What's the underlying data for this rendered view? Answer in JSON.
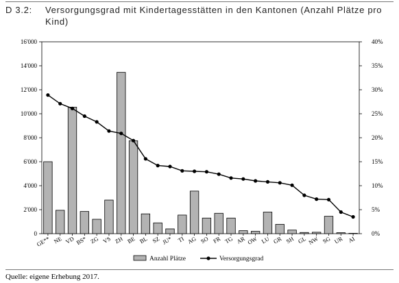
{
  "heading": {
    "number": "D 3.2:",
    "title": "Versorgungsgrad mit Kindertagesstätten in den Kantonen (Anzahl Plätze pro Kind)"
  },
  "source": "Quelle: eigene Erhebung 2017.",
  "chart_data": {
    "type": "bar",
    "categories": [
      "GE**",
      "NE",
      "VD",
      "BS*",
      "ZG",
      "VS",
      "ZH",
      "BE",
      "BL",
      "SZ",
      "JU*",
      "TI",
      "AG",
      "SO",
      "FR",
      "TG",
      "AR",
      "OW",
      "LU",
      "GR",
      "SH",
      "GL",
      "NW",
      "SG",
      "UR",
      "AI"
    ],
    "series": [
      {
        "name": "Anzahl Plätze",
        "type": "bar",
        "axis": "left",
        "color": "#b3b3b3",
        "values": [
          6000,
          1950,
          10550,
          1850,
          1200,
          2800,
          13450,
          7750,
          1650,
          900,
          400,
          1550,
          3550,
          1300,
          1700,
          1300,
          250,
          200,
          1800,
          780,
          300,
          100,
          120,
          1450,
          80,
          30
        ]
      },
      {
        "name": "Versorgungsgrad",
        "type": "line",
        "axis": "right",
        "color": "#000000",
        "values": [
          0.289,
          0.271,
          0.261,
          0.245,
          0.233,
          0.214,
          0.209,
          0.194,
          0.156,
          0.142,
          0.14,
          0.131,
          0.13,
          0.129,
          0.124,
          0.116,
          0.114,
          0.11,
          0.108,
          0.106,
          0.101,
          0.08,
          0.072,
          0.071,
          0.045,
          0.035
        ]
      }
    ],
    "y_left": {
      "min": 0,
      "max": 16000,
      "step": 2000,
      "tick_labels": [
        "0",
        "2'000",
        "4'000",
        "6'000",
        "8'000",
        "10'000",
        "12'000",
        "14'000",
        "16'000"
      ]
    },
    "y_right": {
      "min": 0,
      "max": 0.4,
      "step": 0.05,
      "tick_labels": [
        "0%",
        "5%",
        "10%",
        "15%",
        "20%",
        "25%",
        "30%",
        "35%",
        "40%"
      ]
    },
    "xlabel": "",
    "ylabel": "",
    "grid": false,
    "legend": {
      "position": "bottom-center",
      "entries": [
        "Anzahl Plätze",
        "Versorgungsgrad"
      ]
    }
  }
}
